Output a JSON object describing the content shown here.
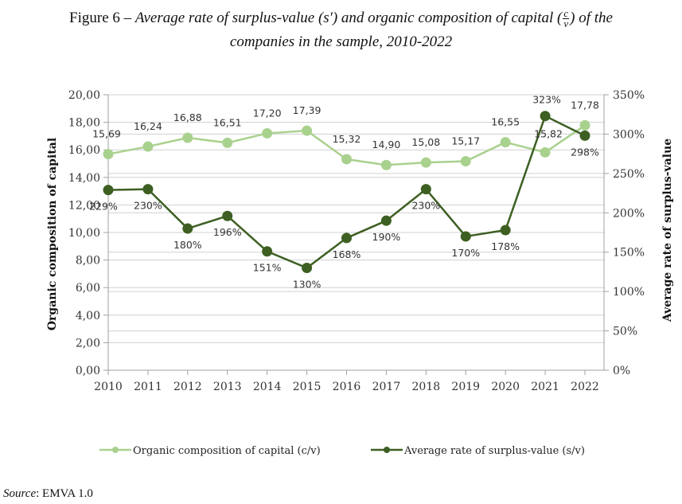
{
  "figure": {
    "title_prefix": "Figure 6 – ",
    "title_italic_1": "Average rate of surplus-value (s′) and organic composition of capital (",
    "title_frac_num": "c",
    "title_frac_den": "v",
    "title_italic_2": ") of the",
    "title_line2": "companies in the sample, 2010-2022",
    "source_label": "Source",
    "source_text": ": EMVA 1.0"
  },
  "chart_data": {
    "type": "line",
    "title": "Average rate of surplus-value (s′) and organic composition of capital (c/v) of the companies in the sample, 2010-2022",
    "x": [
      "2010",
      "2011",
      "2012",
      "2013",
      "2014",
      "2015",
      "2016",
      "2017",
      "2018",
      "2019",
      "2020",
      "2021",
      "2022"
    ],
    "y_left": {
      "label": "Organic composition of capital",
      "range": [
        0,
        20
      ],
      "ticks": [
        "0,00",
        "2,00",
        "4,00",
        "6,00",
        "8,00",
        "10,00",
        "12,00",
        "14,00",
        "16,00",
        "18,00",
        "20,00"
      ]
    },
    "y_right": {
      "label": "Average rate of surplus-value",
      "range": [
        0,
        350
      ],
      "ticks": [
        "0%",
        "50%",
        "100%",
        "150%",
        "200%",
        "250%",
        "300%",
        "350%"
      ]
    },
    "grid": true,
    "legend_position": "bottom",
    "series": [
      {
        "name": "Organic composition of capital (c/v)",
        "axis": "left",
        "color": "#a9d18e",
        "values": [
          15.69,
          16.24,
          16.88,
          16.51,
          17.2,
          17.39,
          15.32,
          14.9,
          15.08,
          15.17,
          16.55,
          15.82,
          17.78
        ],
        "labels": [
          "15,69",
          "16,24",
          "16,88",
          "16,51",
          "17,20",
          "17,39",
          "15,32",
          "14,90",
          "15,08",
          "15,17",
          "16,55",
          "15,82",
          "17,78"
        ]
      },
      {
        "name": "Average rate of surplus-value (s/v)",
        "axis": "right",
        "color": "#3d5f22",
        "values": [
          229,
          230,
          180,
          196,
          151,
          130,
          168,
          190,
          230,
          170,
          178,
          323,
          298
        ],
        "labels": [
          "229%",
          "230%",
          "180%",
          "196%",
          "151%",
          "130%",
          "168%",
          "190%",
          "230%",
          "170%",
          "178%",
          "323%",
          "298%"
        ]
      }
    ]
  }
}
